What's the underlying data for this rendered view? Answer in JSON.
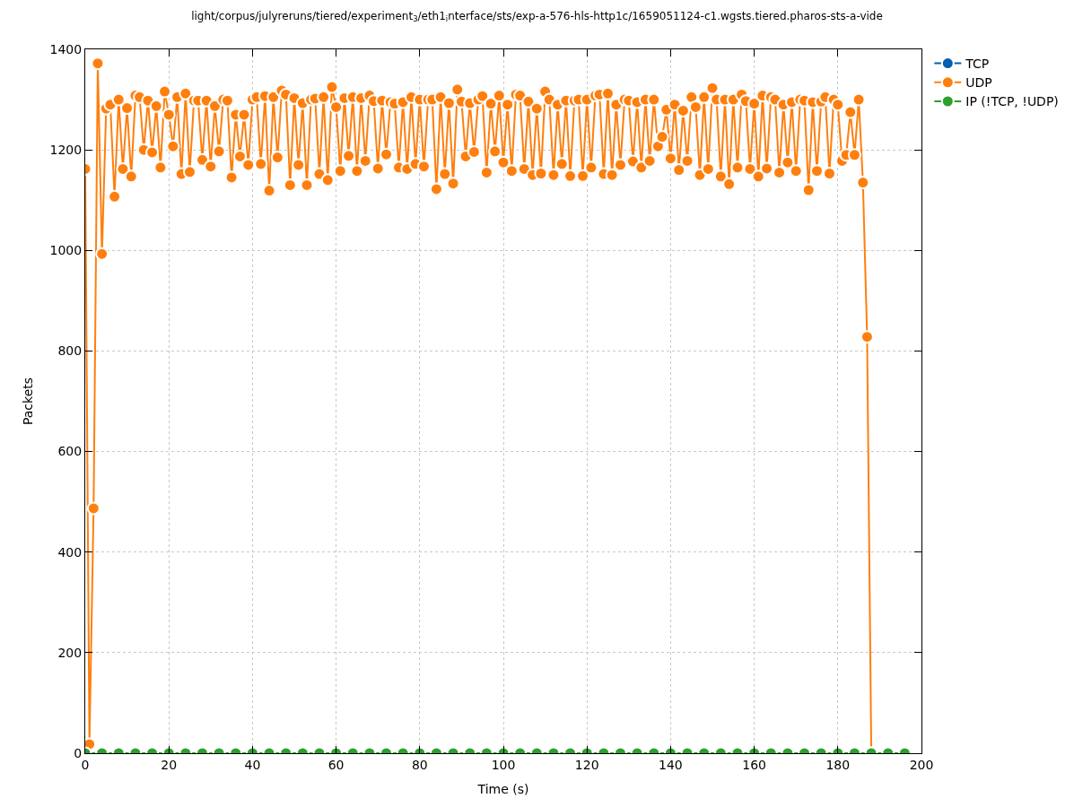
{
  "chart_data": {
    "type": "line",
    "title": "light/corpus/julyreruns/tiered/experiment$_{3}$/eth1$_{i}$nterface/sts/exp-a-576-hls-http1c/1659051124-c1.wgsts.tiered.pharos-sts-a-vide",
    "xlabel": "Time (s)",
    "ylabel": "Packets",
    "series": [
      {
        "name": "TCP",
        "color": "#0060ad"
      },
      {
        "name": "UDP",
        "color": "#ff7f0e",
        "x": [
          0,
          1,
          2,
          3,
          4,
          5,
          6,
          7,
          8,
          9,
          10,
          11,
          12,
          13,
          14,
          15,
          16,
          17,
          18,
          19,
          20,
          21,
          22,
          23,
          24,
          25,
          26,
          27,
          28,
          29,
          30,
          31,
          32,
          33,
          34,
          35,
          36,
          37,
          38,
          39,
          40,
          41,
          42,
          43,
          44,
          45,
          46,
          47,
          48,
          49,
          50,
          51,
          52,
          53,
          54,
          55,
          56,
          57,
          58,
          59,
          60,
          61,
          62,
          63,
          64,
          65,
          66,
          67,
          68,
          69,
          70,
          71,
          72,
          73,
          74,
          75,
          76,
          77,
          78,
          79,
          80,
          81,
          82,
          83,
          84,
          85,
          86,
          87,
          88,
          89,
          90,
          91,
          92,
          93,
          94,
          95,
          96,
          97,
          98,
          99,
          100,
          101,
          102,
          103,
          104,
          105,
          106,
          107,
          108,
          109,
          110,
          111,
          112,
          113,
          114,
          115,
          116,
          117,
          118,
          119,
          120,
          121,
          122,
          123,
          124,
          125,
          126,
          127,
          128,
          129,
          130,
          131,
          132,
          133,
          134,
          135,
          136,
          137,
          138,
          139,
          140,
          141,
          142,
          143,
          144,
          145,
          146,
          147,
          148,
          149,
          150,
          151,
          152,
          153,
          154,
          155,
          156,
          157,
          158,
          159,
          160,
          161,
          162,
          163,
          164,
          165,
          166,
          167,
          168,
          169,
          170,
          171,
          172,
          173,
          174,
          175,
          176,
          177,
          178,
          179,
          180,
          181,
          182,
          183,
          184,
          185,
          186,
          187,
          188
        ],
        "values": [
          1162,
          18,
          487,
          1372,
          993,
          1282,
          1290,
          1107,
          1300,
          1162,
          1283,
          1147,
          1308,
          1305,
          1200,
          1298,
          1195,
          1287,
          1165,
          1316,
          1270,
          1207,
          1305,
          1152,
          1312,
          1156,
          1298,
          1298,
          1180,
          1298,
          1167,
          1287,
          1197,
          1300,
          1298,
          1145,
          1270,
          1187,
          1270,
          1170,
          1300,
          1305,
          1172,
          1307,
          1119,
          1305,
          1185,
          1318,
          1310,
          1130,
          1303,
          1170,
          1293,
          1130,
          1300,
          1302,
          1152,
          1305,
          1140,
          1325,
          1285,
          1158,
          1303,
          1188,
          1305,
          1158,
          1303,
          1178,
          1308,
          1297,
          1163,
          1298,
          1191,
          1295,
          1292,
          1165,
          1295,
          1162,
          1305,
          1172,
          1300,
          1167,
          1300,
          1300,
          1122,
          1305,
          1152,
          1293,
          1133,
          1320,
          1296,
          1187,
          1293,
          1196,
          1300,
          1307,
          1155,
          1292,
          1197,
          1308,
          1175,
          1290,
          1158,
          1310,
          1308,
          1162,
          1296,
          1150,
          1282,
          1153,
          1316,
          1300,
          1150,
          1290,
          1172,
          1298,
          1148,
          1298,
          1300,
          1148,
          1300,
          1165,
          1308,
          1310,
          1152,
          1312,
          1150,
          1290,
          1170,
          1300,
          1298,
          1177,
          1295,
          1165,
          1300,
          1178,
          1300,
          1207,
          1226,
          1280,
          1183,
          1290,
          1160,
          1278,
          1178,
          1305,
          1285,
          1150,
          1305,
          1162,
          1323,
          1300,
          1147,
          1300,
          1132,
          1300,
          1165,
          1310,
          1297,
          1162,
          1292,
          1147,
          1308,
          1163,
          1305,
          1300,
          1155,
          1290,
          1175,
          1295,
          1158,
          1300,
          1298,
          1120,
          1295,
          1158,
          1296,
          1305,
          1153,
          1300,
          1290,
          1178,
          1190,
          1275,
          1190,
          1300,
          1135,
          828,
          0
        ]
      },
      {
        "name": "IP (!TCP, !UDP)",
        "color": "#2ca02c",
        "x": [
          0,
          4,
          8,
          12,
          16,
          20,
          24,
          28,
          32,
          36,
          40,
          44,
          48,
          52,
          56,
          60,
          64,
          68,
          72,
          76,
          80,
          84,
          88,
          92,
          96,
          100,
          104,
          108,
          112,
          116,
          120,
          124,
          128,
          132,
          136,
          140,
          144,
          148,
          152,
          156,
          160,
          164,
          168,
          172,
          176,
          180,
          184,
          188,
          192,
          196
        ],
        "values": [
          0,
          0,
          0,
          0,
          0,
          0,
          0,
          0,
          0,
          0,
          0,
          0,
          0,
          0,
          0,
          0,
          0,
          0,
          0,
          0,
          0,
          0,
          0,
          0,
          0,
          0,
          0,
          0,
          0,
          0,
          0,
          0,
          0,
          0,
          0,
          0,
          0,
          0,
          0,
          0,
          0,
          0,
          0,
          0,
          0,
          0,
          0,
          0,
          0,
          0
        ]
      }
    ],
    "xlim": [
      0,
      200
    ],
    "xticks": [
      0,
      20,
      40,
      60,
      80,
      100,
      120,
      140,
      160,
      180,
      200
    ],
    "ylim": [
      0,
      1400
    ],
    "yticks": [
      0,
      200,
      400,
      600,
      800,
      1000,
      1200,
      1400
    ],
    "grid": true,
    "legend": "top right",
    "marker": "circle",
    "line_style": "solid"
  }
}
